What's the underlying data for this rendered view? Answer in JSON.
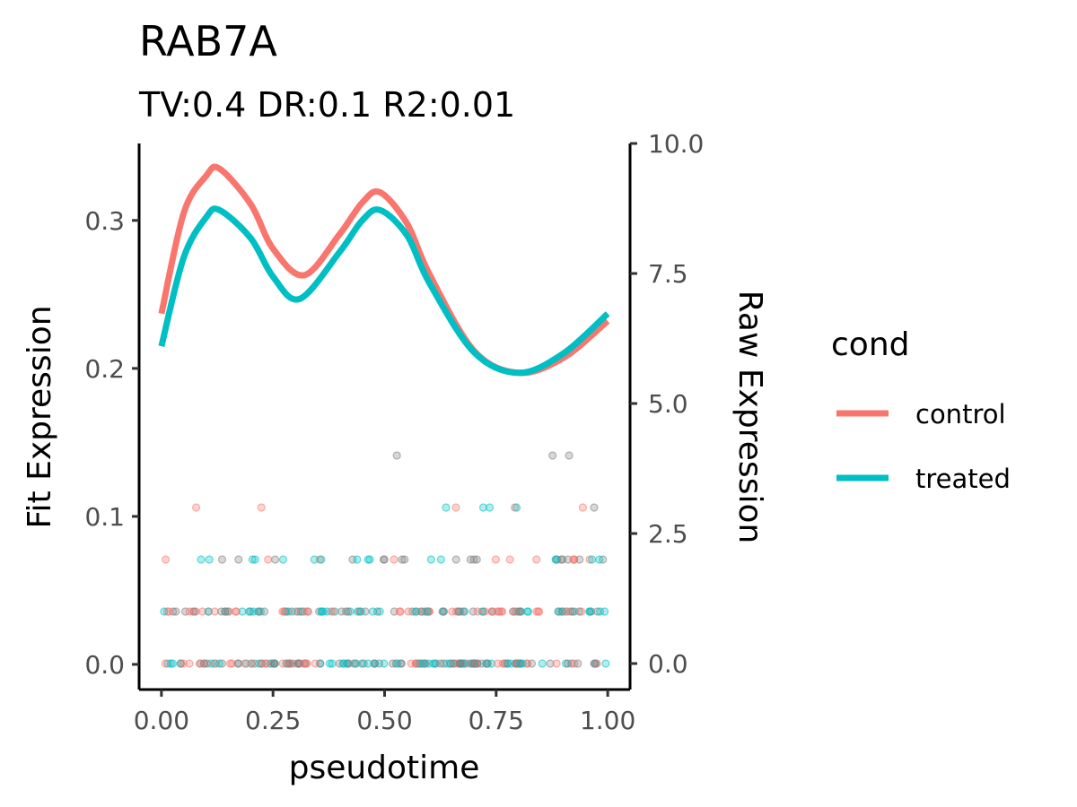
{
  "chart_data": {
    "type": "line",
    "title": "RAB7A",
    "subtitle": "TV:0.4 DR:0.1 R2:0.01",
    "xlabel": "pseudotime",
    "ylabel_left": "Fit Expression",
    "ylabel_right": "Raw Expression",
    "xlim": [
      -0.05,
      1.05
    ],
    "ylim_left": [
      -0.017,
      0.352
    ],
    "ylim_right": [
      -0.5,
      10.0
    ],
    "x_ticks": [
      "0.00",
      "0.25",
      "0.50",
      "0.75",
      "1.00"
    ],
    "x_tick_values": [
      0,
      0.25,
      0.5,
      0.75,
      1.0
    ],
    "y_left_ticks": [
      "0.0",
      "0.1",
      "0.2",
      "0.3"
    ],
    "y_left_tick_values": [
      0,
      0.1,
      0.2,
      0.3
    ],
    "y_right_ticks": [
      "0.0",
      "2.5",
      "5.0",
      "7.5",
      "10.0"
    ],
    "y_right_tick_values": [
      0,
      2.5,
      5.0,
      7.5,
      10.0
    ],
    "grid": false,
    "legend": {
      "title": "cond",
      "position": "right"
    },
    "series": [
      {
        "name": "control",
        "color": "#F8766D",
        "x": [
          0.0,
          0.05,
          0.1,
          0.13,
          0.2,
          0.25,
          0.32,
          0.4,
          0.45,
          0.49,
          0.55,
          0.6,
          0.7,
          0.8,
          0.9,
          1.0
        ],
        "y": [
          0.237,
          0.305,
          0.33,
          0.335,
          0.311,
          0.281,
          0.263,
          0.291,
          0.312,
          0.319,
          0.298,
          0.264,
          0.212,
          0.197,
          0.207,
          0.232
        ]
      },
      {
        "name": "treated",
        "color": "#00BFC4",
        "x": [
          0.0,
          0.05,
          0.1,
          0.13,
          0.2,
          0.25,
          0.31,
          0.4,
          0.45,
          0.49,
          0.55,
          0.6,
          0.7,
          0.8,
          0.9,
          1.0
        ],
        "y": [
          0.215,
          0.275,
          0.302,
          0.307,
          0.288,
          0.262,
          0.247,
          0.279,
          0.3,
          0.307,
          0.29,
          0.258,
          0.211,
          0.197,
          0.21,
          0.237
        ]
      }
    ],
    "raw_points": {
      "levels": [
        0,
        1,
        2,
        3,
        4
      ],
      "note_alpha": 0.3
    }
  }
}
